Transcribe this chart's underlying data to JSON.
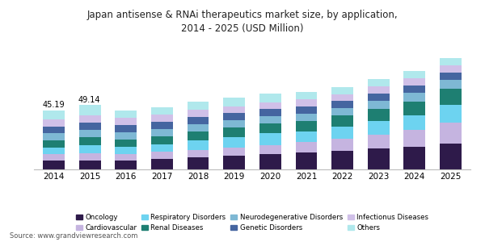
{
  "title": "Japan antisense & RNAi therapeutics market size, by application,\n2014 - 2025 (USD Million)",
  "years": [
    2014,
    2015,
    2016,
    2017,
    2018,
    2019,
    2020,
    2021,
    2022,
    2023,
    2024,
    2025
  ],
  "categories": [
    "Oncology",
    "Cardiovascular",
    "Respiratory Disorders",
    "Renal Diseases",
    "Neurodegenerative Disorders",
    "Genetic Disorders",
    "Infectionus Diseases",
    "Others"
  ],
  "colors": [
    "#2e1a4a",
    "#c5b4e0",
    "#6dd3f0",
    "#1e7f72",
    "#7eb8d4",
    "#4565a0",
    "#d0c0e8",
    "#b0e8ec"
  ],
  "data": {
    "Oncology": [
      7.0,
      6.8,
      6.9,
      7.8,
      9.2,
      10.2,
      11.5,
      13.0,
      14.2,
      15.8,
      17.5,
      20.0
    ],
    "Cardiovascular": [
      4.5,
      5.5,
      4.8,
      5.5,
      5.8,
      6.2,
      7.0,
      8.0,
      9.5,
      11.0,
      13.0,
      16.0
    ],
    "Respiratory Disorders": [
      5.0,
      6.5,
      5.8,
      6.0,
      7.5,
      8.5,
      9.0,
      8.0,
      9.0,
      10.0,
      11.0,
      13.5
    ],
    "Renal Diseases": [
      5.5,
      5.8,
      5.5,
      6.0,
      6.5,
      7.0,
      7.5,
      8.0,
      8.5,
      9.5,
      10.5,
      12.0
    ],
    "Neurodegenerative Disorders": [
      5.5,
      5.5,
      5.5,
      5.5,
      5.5,
      5.5,
      5.5,
      5.5,
      5.5,
      6.0,
      6.5,
      7.0
    ],
    "Genetic Disorders": [
      5.5,
      5.5,
      5.5,
      5.5,
      5.5,
      5.5,
      5.5,
      5.5,
      5.5,
      5.5,
      5.5,
      5.5
    ],
    "Infectionus Diseases": [
      5.5,
      5.5,
      5.5,
      5.5,
      5.5,
      5.5,
      5.5,
      5.5,
      5.5,
      5.5,
      5.5,
      5.5
    ],
    "Others": [
      6.69,
      8.04,
      5.5,
      5.7,
      6.5,
      6.6,
      6.5,
      5.5,
      5.5,
      5.7,
      5.5,
      5.5
    ]
  },
  "annotations": [
    {
      "year_idx": 0,
      "text": "45.19"
    },
    {
      "year_idx": 1,
      "text": "49.14"
    }
  ],
  "source": "Source: www.grandviewresearch.com",
  "background_color": "#ffffff",
  "bar_width": 0.6,
  "header_bg": "#3a1a5c"
}
